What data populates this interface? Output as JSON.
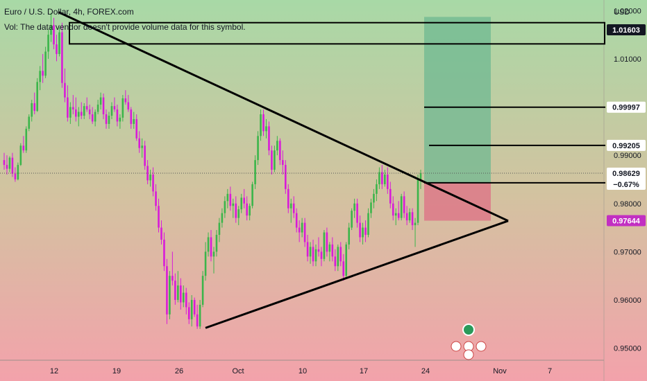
{
  "header": {
    "title": "Euro / U.S. Dollar, 4h, FOREX.com",
    "volume_note": "Vol: The data vendor doesn't provide volume data for this symbol."
  },
  "chart_data": {
    "type": "candlestick",
    "currency_label": "USD",
    "y_ticks": [
      "1.02000",
      "1.01000",
      "0.99000",
      "0.98000",
      "0.97000",
      "0.96000",
      "0.95000"
    ],
    "x_ticks": [
      "12",
      "19",
      "26",
      "Oct",
      "10",
      "17",
      "24",
      "Nov",
      "7"
    ],
    "ylim": [
      0.9475,
      1.0222
    ],
    "price_tags": [
      {
        "value": "1.01603",
        "style": "dark"
      },
      {
        "value": "0.99997",
        "style": "light"
      },
      {
        "value": "0.99205",
        "style": "light"
      },
      {
        "value": "0.98629",
        "sub": "−0.67%",
        "style": "light"
      },
      {
        "value": "0.97644",
        "style": "pink"
      }
    ],
    "colors": {
      "up": "#3bb54a",
      "down": "#d81bd8",
      "bg_top": "#a8d9a6",
      "bg_bottom": "#f3a2ab",
      "profit_zone": "#6fb892",
      "loss_zone": "#dd6f86",
      "tag_dark": "#131722",
      "tag_pink": "#c22fc2"
    },
    "lines": {
      "resistance_zone": [
        1.0175,
        1.0131
      ],
      "take_profit_1": 0.99997,
      "take_profit_2": 0.99205,
      "entry": 0.9843,
      "stop": 0.97644,
      "last_price": 0.98629
    },
    "candles": [
      [
        0.989,
        0.9905,
        0.987,
        0.988
      ],
      [
        0.988,
        0.99,
        0.986,
        0.9872
      ],
      [
        0.9872,
        0.9898,
        0.9865,
        0.9895
      ],
      [
        0.9895,
        0.9905,
        0.9855,
        0.9862
      ],
      [
        0.9862,
        0.9875,
        0.9845,
        0.985
      ],
      [
        0.985,
        0.9885,
        0.9848,
        0.988
      ],
      [
        0.988,
        0.9925,
        0.9878,
        0.992
      ],
      [
        0.992,
        0.994,
        0.9905,
        0.991
      ],
      [
        0.991,
        0.996,
        0.9905,
        0.9955
      ],
      [
        0.9955,
        0.9985,
        0.995,
        0.998
      ],
      [
        0.998,
        1.0015,
        0.997,
        1.0008
      ],
      [
        1.0008,
        1.003,
        0.9985,
        0.9992
      ],
      [
        0.9992,
        1.006,
        0.999,
        1.0052
      ],
      [
        1.0052,
        1.0085,
        1.0035,
        1.0075
      ],
      [
        1.0075,
        1.011,
        1.005,
        1.0065
      ],
      [
        1.0065,
        1.0125,
        1.006,
        1.0115
      ],
      [
        1.0115,
        1.016,
        1.01,
        1.015
      ],
      [
        1.015,
        1.0195,
        1.0135,
        1.017
      ],
      [
        1.017,
        1.0185,
        1.012,
        1.013
      ],
      [
        1.013,
        1.015,
        1.0095,
        1.011
      ],
      [
        1.011,
        1.0165,
        1.0105,
        1.0155
      ],
      [
        1.0155,
        1.0175,
        1.004,
        1.005
      ],
      [
        1.005,
        1.008,
        1.001,
        1.002
      ],
      [
        1.002,
        1.0045,
        0.997,
        0.9978
      ],
      [
        0.9978,
        1.001,
        0.9965,
        1.0
      ],
      [
        1.0,
        1.0025,
        0.9985,
        0.9995
      ],
      [
        0.9995,
        1.002,
        0.997,
        0.998
      ],
      [
        0.998,
        1.0,
        0.996,
        0.999
      ],
      [
        0.999,
        1.001,
        0.9975,
        0.9982
      ],
      [
        0.9982,
        1.0008,
        0.9975,
        1.0002
      ],
      [
        1.0002,
        1.002,
        0.999,
        0.9995
      ],
      [
        0.9995,
        1.0005,
        0.9975,
        0.9985
      ],
      [
        0.9985,
        1.0,
        0.9965,
        0.997
      ],
      [
        0.997,
        0.9995,
        0.996,
        0.999
      ],
      [
        0.999,
        1.0015,
        0.9985,
        1.0005
      ],
      [
        1.0005,
        1.003,
        0.9995,
        1.002
      ],
      [
        1.002,
        1.0028,
        0.9975,
        0.9985
      ],
      [
        0.9985,
        0.9995,
        0.9955,
        0.9965
      ],
      [
        0.9965,
        0.999,
        0.9955,
        0.9982
      ],
      [
        0.9982,
        1.001,
        0.9975,
        1.0002
      ],
      [
        1.0002,
        1.002,
        0.999,
        0.9995
      ],
      [
        0.9995,
        1.0005,
        0.996,
        0.997
      ],
      [
        0.997,
        0.9985,
        0.9955,
        0.9978
      ],
      [
        0.9978,
        1.0025,
        0.997,
        1.0018
      ],
      [
        1.0018,
        1.0035,
        1.0005,
        1.001
      ],
      [
        1.001,
        1.0025,
        0.999,
        0.9995
      ],
      [
        0.9995,
        1.0,
        0.9955,
        0.9965
      ],
      [
        0.9965,
        0.999,
        0.9955,
        0.9975
      ],
      [
        0.9975,
        0.9985,
        0.993,
        0.9935
      ],
      [
        0.9935,
        0.995,
        0.9905,
        0.9915
      ],
      [
        0.9915,
        0.9935,
        0.9895,
        0.992
      ],
      [
        0.992,
        0.993,
        0.987,
        0.9878
      ],
      [
        0.9878,
        0.989,
        0.984,
        0.9848
      ],
      [
        0.9848,
        0.987,
        0.9835,
        0.986
      ],
      [
        0.986,
        0.9875,
        0.9815,
        0.9825
      ],
      [
        0.9825,
        0.984,
        0.9785,
        0.9795
      ],
      [
        0.9795,
        0.981,
        0.974,
        0.975
      ],
      [
        0.975,
        0.9765,
        0.9715,
        0.9725
      ],
      [
        0.9725,
        0.974,
        0.966,
        0.967
      ],
      [
        0.967,
        0.9685,
        0.955,
        0.957
      ],
      [
        0.957,
        0.966,
        0.956,
        0.965
      ],
      [
        0.965,
        0.97,
        0.963,
        0.964
      ],
      [
        0.964,
        0.9655,
        0.959,
        0.96
      ],
      [
        0.96,
        0.966,
        0.9595,
        0.963
      ],
      [
        0.963,
        0.9645,
        0.958,
        0.9595
      ],
      [
        0.9595,
        0.963,
        0.9585,
        0.9615
      ],
      [
        0.9615,
        0.9625,
        0.957,
        0.9585
      ],
      [
        0.9585,
        0.9595,
        0.955,
        0.956
      ],
      [
        0.956,
        0.961,
        0.9545,
        0.96
      ],
      [
        0.96,
        0.9605,
        0.9565,
        0.957
      ],
      [
        0.957,
        0.959,
        0.954,
        0.9545
      ],
      [
        0.9545,
        0.96,
        0.954,
        0.959
      ],
      [
        0.959,
        0.966,
        0.9585,
        0.965
      ],
      [
        0.965,
        0.972,
        0.964,
        0.97
      ],
      [
        0.97,
        0.974,
        0.969,
        0.973
      ],
      [
        0.973,
        0.9745,
        0.968,
        0.969
      ],
      [
        0.969,
        0.971,
        0.9655,
        0.97
      ],
      [
        0.97,
        0.9745,
        0.969,
        0.9735
      ],
      [
        0.9735,
        0.977,
        0.972,
        0.976
      ],
      [
        0.976,
        0.979,
        0.975,
        0.978
      ],
      [
        0.978,
        0.9815,
        0.977,
        0.9805
      ],
      [
        0.9805,
        0.983,
        0.979,
        0.982
      ],
      [
        0.982,
        0.9835,
        0.9785,
        0.9795
      ],
      [
        0.9795,
        0.981,
        0.977,
        0.98
      ],
      [
        0.98,
        0.9815,
        0.976,
        0.977
      ],
      [
        0.977,
        0.9795,
        0.9755,
        0.9788
      ],
      [
        0.9788,
        0.982,
        0.978,
        0.9812
      ],
      [
        0.9812,
        0.983,
        0.979,
        0.98
      ],
      [
        0.98,
        0.9815,
        0.9765,
        0.9775
      ],
      [
        0.9775,
        0.98,
        0.9765,
        0.9795
      ],
      [
        0.9795,
        0.9845,
        0.979,
        0.984
      ],
      [
        0.984,
        0.99,
        0.983,
        0.989
      ],
      [
        0.989,
        0.995,
        0.988,
        0.994
      ],
      [
        0.994,
        0.9995,
        0.993,
        0.9985
      ],
      [
        0.9985,
        0.9995,
        0.994,
        0.995
      ],
      [
        0.995,
        0.9975,
        0.9935,
        0.996
      ],
      [
        0.996,
        0.997,
        0.99,
        0.991
      ],
      [
        0.991,
        0.992,
        0.986,
        0.987
      ],
      [
        0.987,
        0.992,
        0.9865,
        0.991
      ],
      [
        0.991,
        0.994,
        0.99,
        0.993
      ],
      [
        0.993,
        0.9935,
        0.988,
        0.989
      ],
      [
        0.989,
        0.991,
        0.986,
        0.988
      ],
      [
        0.988,
        0.989,
        0.982,
        0.983
      ],
      [
        0.983,
        0.984,
        0.978,
        0.979
      ],
      [
        0.979,
        0.981,
        0.976,
        0.98
      ],
      [
        0.98,
        0.9815,
        0.977,
        0.978
      ],
      [
        0.978,
        0.979,
        0.974,
        0.975
      ],
      [
        0.975,
        0.9765,
        0.972,
        0.974
      ],
      [
        0.974,
        0.977,
        0.973,
        0.976
      ],
      [
        0.976,
        0.977,
        0.971,
        0.972
      ],
      [
        0.972,
        0.9735,
        0.968,
        0.969
      ],
      [
        0.969,
        0.972,
        0.9675,
        0.971
      ],
      [
        0.971,
        0.9725,
        0.967,
        0.968
      ],
      [
        0.968,
        0.9715,
        0.967,
        0.9705
      ],
      [
        0.9705,
        0.973,
        0.969,
        0.97
      ],
      [
        0.97,
        0.971,
        0.967,
        0.9685
      ],
      [
        0.9685,
        0.9745,
        0.968,
        0.974
      ],
      [
        0.974,
        0.975,
        0.969,
        0.97
      ],
      [
        0.97,
        0.972,
        0.968,
        0.9715
      ],
      [
        0.9715,
        0.973,
        0.968,
        0.969
      ],
      [
        0.969,
        0.9705,
        0.966,
        0.967
      ],
      [
        0.967,
        0.9715,
        0.966,
        0.971
      ],
      [
        0.971,
        0.972,
        0.967,
        0.968
      ],
      [
        0.968,
        0.9695,
        0.964,
        0.965
      ],
      [
        0.965,
        0.972,
        0.9645,
        0.9715
      ],
      [
        0.9715,
        0.976,
        0.9705,
        0.975
      ],
      [
        0.975,
        0.979,
        0.9745,
        0.9785
      ],
      [
        0.9785,
        0.981,
        0.977,
        0.98
      ],
      [
        0.98,
        0.981,
        0.975,
        0.976
      ],
      [
        0.976,
        0.9775,
        0.972,
        0.973
      ],
      [
        0.973,
        0.976,
        0.9715,
        0.975
      ],
      [
        0.975,
        0.9765,
        0.972,
        0.9735
      ],
      [
        0.9735,
        0.979,
        0.973,
        0.978
      ],
      [
        0.978,
        0.981,
        0.977,
        0.9802
      ],
      [
        0.9802,
        0.983,
        0.979,
        0.982
      ],
      [
        0.982,
        0.985,
        0.9805,
        0.984
      ],
      [
        0.984,
        0.9875,
        0.983,
        0.9865
      ],
      [
        0.9865,
        0.988,
        0.983,
        0.984
      ],
      [
        0.984,
        0.987,
        0.9835,
        0.986
      ],
      [
        0.986,
        0.9875,
        0.982,
        0.983
      ],
      [
        0.983,
        0.9845,
        0.979,
        0.98
      ],
      [
        0.98,
        0.9815,
        0.9765,
        0.9775
      ],
      [
        0.9775,
        0.979,
        0.9755,
        0.978
      ],
      [
        0.978,
        0.9805,
        0.9765,
        0.977
      ],
      [
        0.977,
        0.982,
        0.9765,
        0.9815
      ],
      [
        0.9815,
        0.9825,
        0.977,
        0.978
      ],
      [
        0.978,
        0.9795,
        0.9755,
        0.9765
      ],
      [
        0.9765,
        0.979,
        0.976,
        0.9782
      ],
      [
        0.9782,
        0.979,
        0.9745,
        0.9755
      ],
      [
        0.9755,
        0.977,
        0.971,
        0.976
      ],
      [
        0.976,
        0.986,
        0.9755,
        0.985
      ],
      [
        0.985,
        0.987,
        0.983,
        0.9863
      ]
    ]
  },
  "logo": {
    "name": "logo-badge"
  }
}
